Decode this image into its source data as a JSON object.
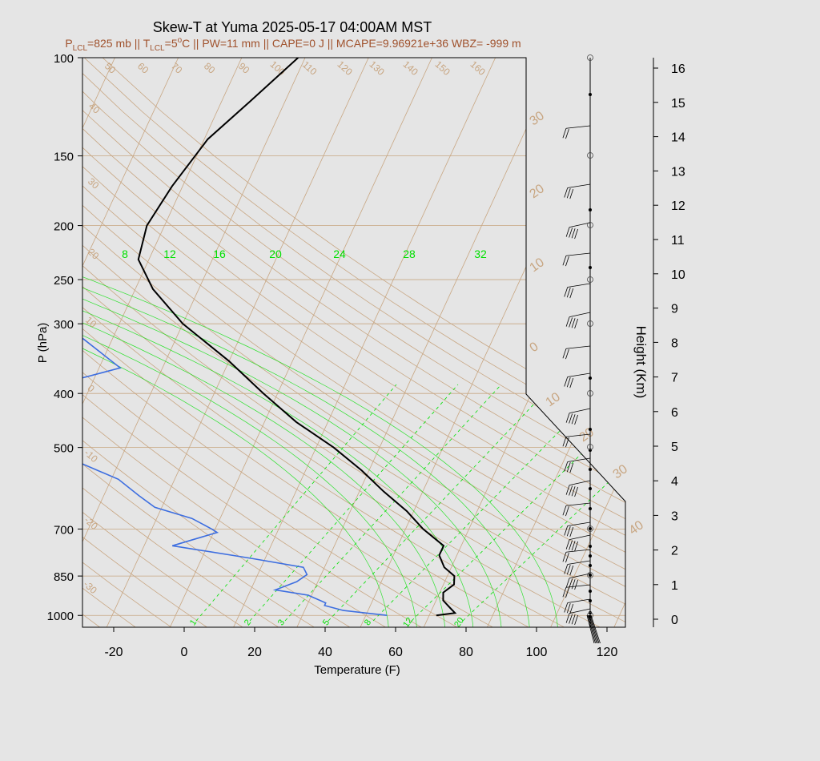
{
  "chart_data": {
    "type": "line",
    "title": "Skew-T at Yuma 2025-05-17 04:00AM MST",
    "subtitle": {
      "lcl_p": "825",
      "lcl_t": "5",
      "pw": "11",
      "cape": "0",
      "mcape": "9.96921e+36",
      "wbz": "-999"
    },
    "xlabel": "Temperature (F)",
    "ylabel": "P (hPa)",
    "y2label": "Height (Km)",
    "xlim": [
      -28,
      125
    ],
    "ylim": [
      1050,
      100
    ],
    "x_ticks": [
      -20,
      0,
      20,
      40,
      60,
      80,
      100,
      120
    ],
    "pressure_ticks": [
      100,
      150,
      200,
      250,
      300,
      400,
      500,
      700,
      850,
      1000
    ],
    "height_ticks": [
      0,
      1,
      2,
      3,
      4,
      5,
      6,
      7,
      8,
      9,
      10,
      11,
      12,
      13,
      14,
      15,
      16
    ],
    "dry_adiabat_labels": [
      "50",
      "60",
      "70",
      "80",
      "90",
      "100",
      "110",
      "120",
      "130",
      "140",
      "150",
      "160",
      "40",
      "30",
      "20",
      "10",
      "0",
      "-10",
      "-20",
      "-30"
    ],
    "isotherm_edge_labels": [
      "30",
      "20",
      "10",
      "0",
      "10",
      "20",
      "30",
      "40"
    ],
    "mixing_ratio_top_labels": [
      "8",
      "12",
      "16",
      "20",
      "24",
      "28",
      "32"
    ],
    "mixing_ratio_bottom_labels": [
      "1",
      "2",
      "3",
      "5",
      "8",
      "12",
      "20"
    ],
    "series": [
      {
        "name": "temperature",
        "color": "#000000",
        "points": [
          {
            "p": 1000,
            "t": 70
          },
          {
            "p": 990,
            "t": 75
          },
          {
            "p": 970,
            "t": 73
          },
          {
            "p": 940,
            "t": 70
          },
          {
            "p": 910,
            "t": 69
          },
          {
            "p": 880,
            "t": 71
          },
          {
            "p": 850,
            "t": 70
          },
          {
            "p": 820,
            "t": 66
          },
          {
            "p": 780,
            "t": 63
          },
          {
            "p": 750,
            "t": 63
          },
          {
            "p": 700,
            "t": 55
          },
          {
            "p": 650,
            "t": 48
          },
          {
            "p": 600,
            "t": 39
          },
          {
            "p": 550,
            "t": 30
          },
          {
            "p": 500,
            "t": 19
          },
          {
            "p": 450,
            "t": 5
          },
          {
            "p": 400,
            "t": -8
          },
          {
            "p": 350,
            "t": -22
          },
          {
            "p": 300,
            "t": -40
          },
          {
            "p": 260,
            "t": -53
          },
          {
            "p": 230,
            "t": -61
          },
          {
            "p": 200,
            "t": -63
          },
          {
            "p": 170,
            "t": -61
          },
          {
            "p": 140,
            "t": -57
          },
          {
            "p": 120,
            "t": -50
          },
          {
            "p": 100,
            "t": -42
          }
        ]
      },
      {
        "name": "dewpoint",
        "color": "#3d6ee0",
        "points": [
          {
            "p": 1000,
            "t": 56
          },
          {
            "p": 980,
            "t": 43
          },
          {
            "p": 960,
            "t": 37
          },
          {
            "p": 950,
            "t": 37
          },
          {
            "p": 920,
            "t": 31
          },
          {
            "p": 900,
            "t": 21
          },
          {
            "p": 870,
            "t": 26
          },
          {
            "p": 845,
            "t": 28
          },
          {
            "p": 820,
            "t": 26
          },
          {
            "p": 790,
            "t": 10
          },
          {
            "p": 750,
            "t": -14
          },
          {
            "p": 710,
            "t": -3
          },
          {
            "p": 700,
            "t": -5
          },
          {
            "p": 670,
            "t": -12
          },
          {
            "p": 640,
            "t": -24
          },
          {
            "p": 610,
            "t": -30
          },
          {
            "p": 570,
            "t": -38
          },
          {
            "p": 530,
            "t": -52
          },
          {
            "p": 490,
            "t": -68
          },
          {
            "p": 460,
            "t": -85
          },
          {
            "p": 440,
            "t": -98
          },
          {
            "p": 360,
            "t": -52
          },
          {
            "p": 320,
            "t": -66
          },
          {
            "p": 290,
            "t": -79
          },
          {
            "p": 260,
            "t": -90
          },
          {
            "p": 230,
            "t": -100
          },
          {
            "p": 200,
            "t": -113
          },
          {
            "p": 170,
            "t": -125
          },
          {
            "p": 140,
            "t": -132
          },
          {
            "p": 125,
            "t": -125
          },
          {
            "p": 100,
            "t": -115
          }
        ]
      }
    ],
    "colors": {
      "background": "#e5e5e5",
      "plot_bg": "#e5e5e5",
      "adiabat": "#c8a682",
      "mixing": "#00e000",
      "temperature": "#000000",
      "dewpoint": "#3d6ee0",
      "subtitle": "#a0522d"
    }
  }
}
